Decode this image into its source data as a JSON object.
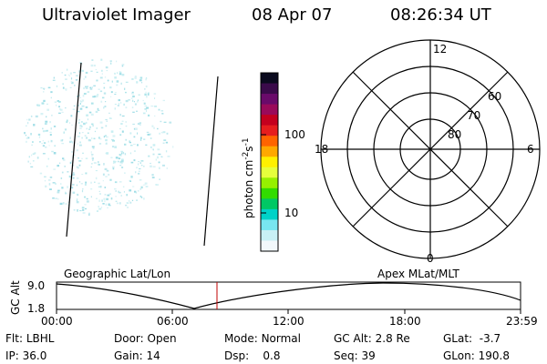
{
  "header": {
    "instrument": "Ultraviolet Imager",
    "date": "08 Apr 07",
    "time": "08:26:34 UT"
  },
  "colorbar": {
    "unit_label": "photon cm",
    "unit_sup1": "-2",
    "unit_mid": "s",
    "unit_sup2": "-1",
    "ticks": [
      "100",
      "10"
    ],
    "colors": [
      "#0a0a1e",
      "#3a0a4a",
      "#6a0a6a",
      "#9a0a5a",
      "#c4001e",
      "#e61e1e",
      "#ff6400",
      "#ffa800",
      "#fff000",
      "#e6ff3c",
      "#96f000",
      "#32dc00",
      "#00c864",
      "#00d2c8",
      "#78e6f0",
      "#c8f0f5",
      "#f2f8fb"
    ]
  },
  "polar": {
    "mlt_labels": {
      "top": "12",
      "left": "18",
      "right": "6",
      "bottom": "0"
    },
    "lat_labels": [
      "60",
      "70",
      "80"
    ]
  },
  "plot": {
    "left_label": "Geographic Lat/Lon",
    "right_label": "Apex MLat/MLT",
    "ylabel": "GC Alt",
    "ymax": "9.0",
    "ymin": "1.8",
    "xticks": [
      "00:00",
      "06:00",
      "12:00",
      "18:00",
      "23:59"
    ]
  },
  "info": {
    "filter_label": "Flt:",
    "filter_value": "LBHL",
    "ip_label": "IP:",
    "ip_value": "36.0",
    "door_label": "Door:",
    "door_value": "Open",
    "gain_label": "Gain:",
    "gain_value": "14",
    "mode_label": "Mode:",
    "mode_value": "Normal",
    "dsp_label": "Dsp:",
    "dsp_value": "0.8",
    "gcalt_label": "GC Alt:",
    "gcalt_value": "2.8 Re",
    "seq_label": "Seq:",
    "seq_value": "39",
    "glat_label": "GLat:",
    "glat_value": "-3.7",
    "glon_label": "GLon:",
    "glon_value": "190.8"
  }
}
